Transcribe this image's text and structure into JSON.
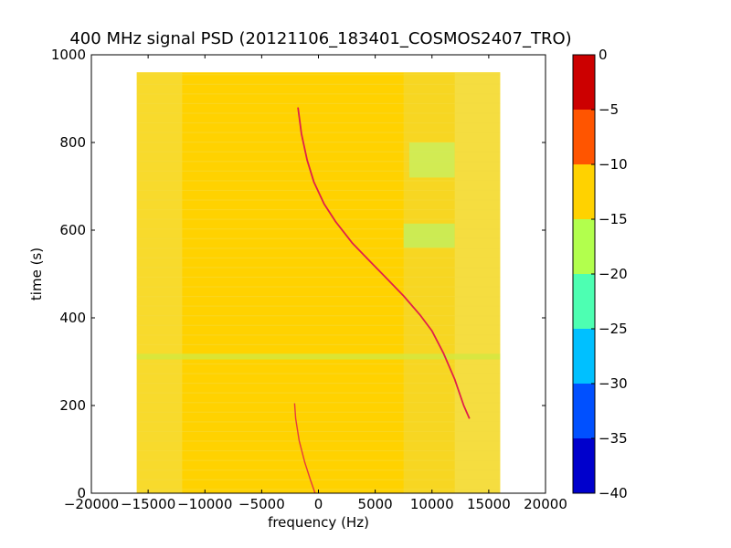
{
  "chart_data": {
    "type": "heatmap",
    "title": "400 MHz signal PSD (20121106_183401_COSMOS2407_TRO)",
    "xlabel": "frequency (Hz)",
    "ylabel": "time (s)",
    "xlim": [
      -20000,
      20000
    ],
    "ylim": [
      0,
      1000
    ],
    "xticks": [
      -20000,
      -15000,
      -10000,
      -5000,
      0,
      5000,
      10000,
      15000,
      20000
    ],
    "xtick_labels": [
      "−20000",
      "−15000",
      "−10000",
      "−5000",
      "0",
      "5000",
      "10000",
      "15000",
      "20000"
    ],
    "yticks": [
      0,
      200,
      400,
      600,
      800,
      1000
    ],
    "ytick_labels": [
      "0",
      "200",
      "400",
      "600",
      "800",
      "1000"
    ],
    "data_extent": {
      "freq": [
        -16000,
        16000
      ],
      "time": [
        0,
        960
      ]
    },
    "grid": false,
    "colorbar": {
      "range": [
        -40,
        0
      ],
      "ticks": [
        0,
        -5,
        -10,
        -15,
        -20,
        -25,
        -30,
        -35,
        -40
      ],
      "tick_labels": [
        "0",
        "−5",
        "−10",
        "−15",
        "−20",
        "−25",
        "−30",
        "−35",
        "−40"
      ],
      "bands": [
        {
          "from": -5,
          "to": 0,
          "color": "#cc0000"
        },
        {
          "from": -10,
          "to": -5,
          "color": "#ff5500"
        },
        {
          "from": -15,
          "to": -10,
          "color": "#ffd200"
        },
        {
          "from": -20,
          "to": -15,
          "color": "#b2ff4d"
        },
        {
          "from": -25,
          "to": -20,
          "color": "#4dffb2"
        },
        {
          "from": -30,
          "to": -25,
          "color": "#00c0ff"
        },
        {
          "from": -35,
          "to": -30,
          "color": "#0050ff"
        },
        {
          "from": -40,
          "to": -35,
          "color": "#0000cc"
        }
      ]
    },
    "background_level_color": "#ffd200",
    "edge_level_color": "#f2e050",
    "green_patches": [
      {
        "freq": [
          8000,
          12000
        ],
        "time": [
          720,
          800
        ],
        "color": "#c8f060"
      },
      {
        "freq": [
          7500,
          12000
        ],
        "time": [
          560,
          615
        ],
        "color": "#c0f060"
      },
      {
        "freq": [
          -16000,
          16000
        ],
        "time": [
          305,
          318
        ],
        "color": "#d2e840"
      }
    ],
    "signal_trace": {
      "color": "#e0204a",
      "upper_branch": [
        [
          -1800,
          880
        ],
        [
          -1500,
          820
        ],
        [
          -1000,
          760
        ],
        [
          -400,
          710
        ],
        [
          500,
          660
        ],
        [
          1500,
          620
        ],
        [
          3000,
          570
        ],
        [
          4500,
          530
        ],
        [
          6000,
          490
        ],
        [
          7500,
          450
        ],
        [
          9000,
          405
        ],
        [
          10000,
          370
        ],
        [
          11000,
          320
        ],
        [
          12000,
          260
        ],
        [
          12800,
          200
        ],
        [
          13300,
          170
        ]
      ],
      "lower_branch": [
        [
          -2100,
          205
        ],
        [
          -2000,
          170
        ],
        [
          -1700,
          120
        ],
        [
          -1200,
          70
        ],
        [
          -700,
          30
        ],
        [
          -300,
          0
        ]
      ]
    }
  }
}
